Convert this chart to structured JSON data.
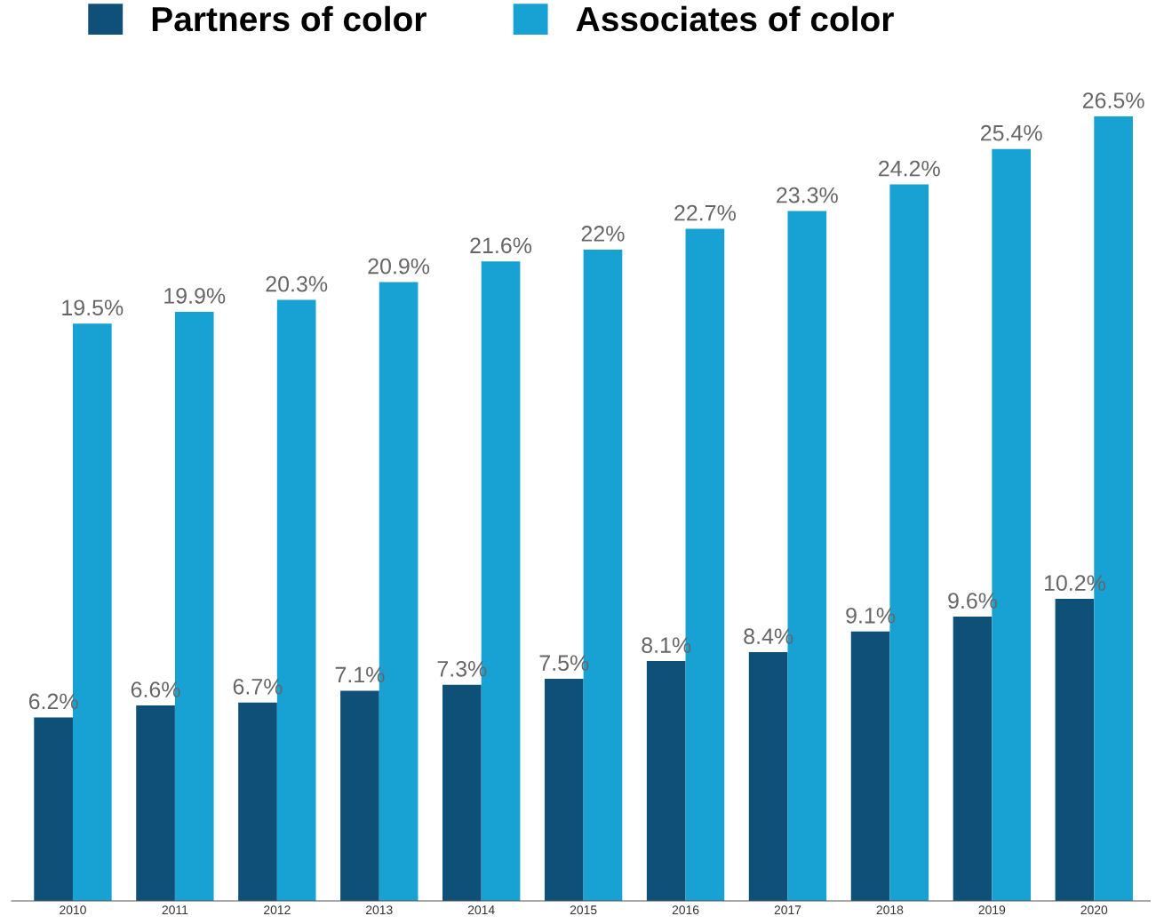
{
  "chart_data": {
    "type": "bar",
    "categories": [
      "2010",
      "2011",
      "2012",
      "2013",
      "2014",
      "2015",
      "2016",
      "2017",
      "2018",
      "2019",
      "2020"
    ],
    "series": [
      {
        "name": "Partners of color",
        "color": "#0e5078",
        "values": [
          6.2,
          6.6,
          6.7,
          7.1,
          7.3,
          7.5,
          8.1,
          8.4,
          9.1,
          9.6,
          10.2
        ],
        "value_labels": [
          "6.2%",
          "6.6%",
          "6.7%",
          "7.1%",
          "7.3%",
          "7.5%",
          "8.1%",
          "8.4%",
          "9.1%",
          "9.6%",
          "10.2%"
        ]
      },
      {
        "name": "Associates of color",
        "color": "#17a2d3",
        "values": [
          19.5,
          19.9,
          20.3,
          20.9,
          21.6,
          22,
          22.7,
          23.3,
          24.2,
          25.4,
          26.5
        ],
        "value_labels": [
          "19.5%",
          "19.9%",
          "20.3%",
          "20.9%",
          "21.6%",
          "22%",
          "22.7%",
          "23.3%",
          "24.2%",
          "25.4%",
          "26.5%"
        ]
      }
    ],
    "legend": "top left",
    "tick_labels": "x"
  }
}
